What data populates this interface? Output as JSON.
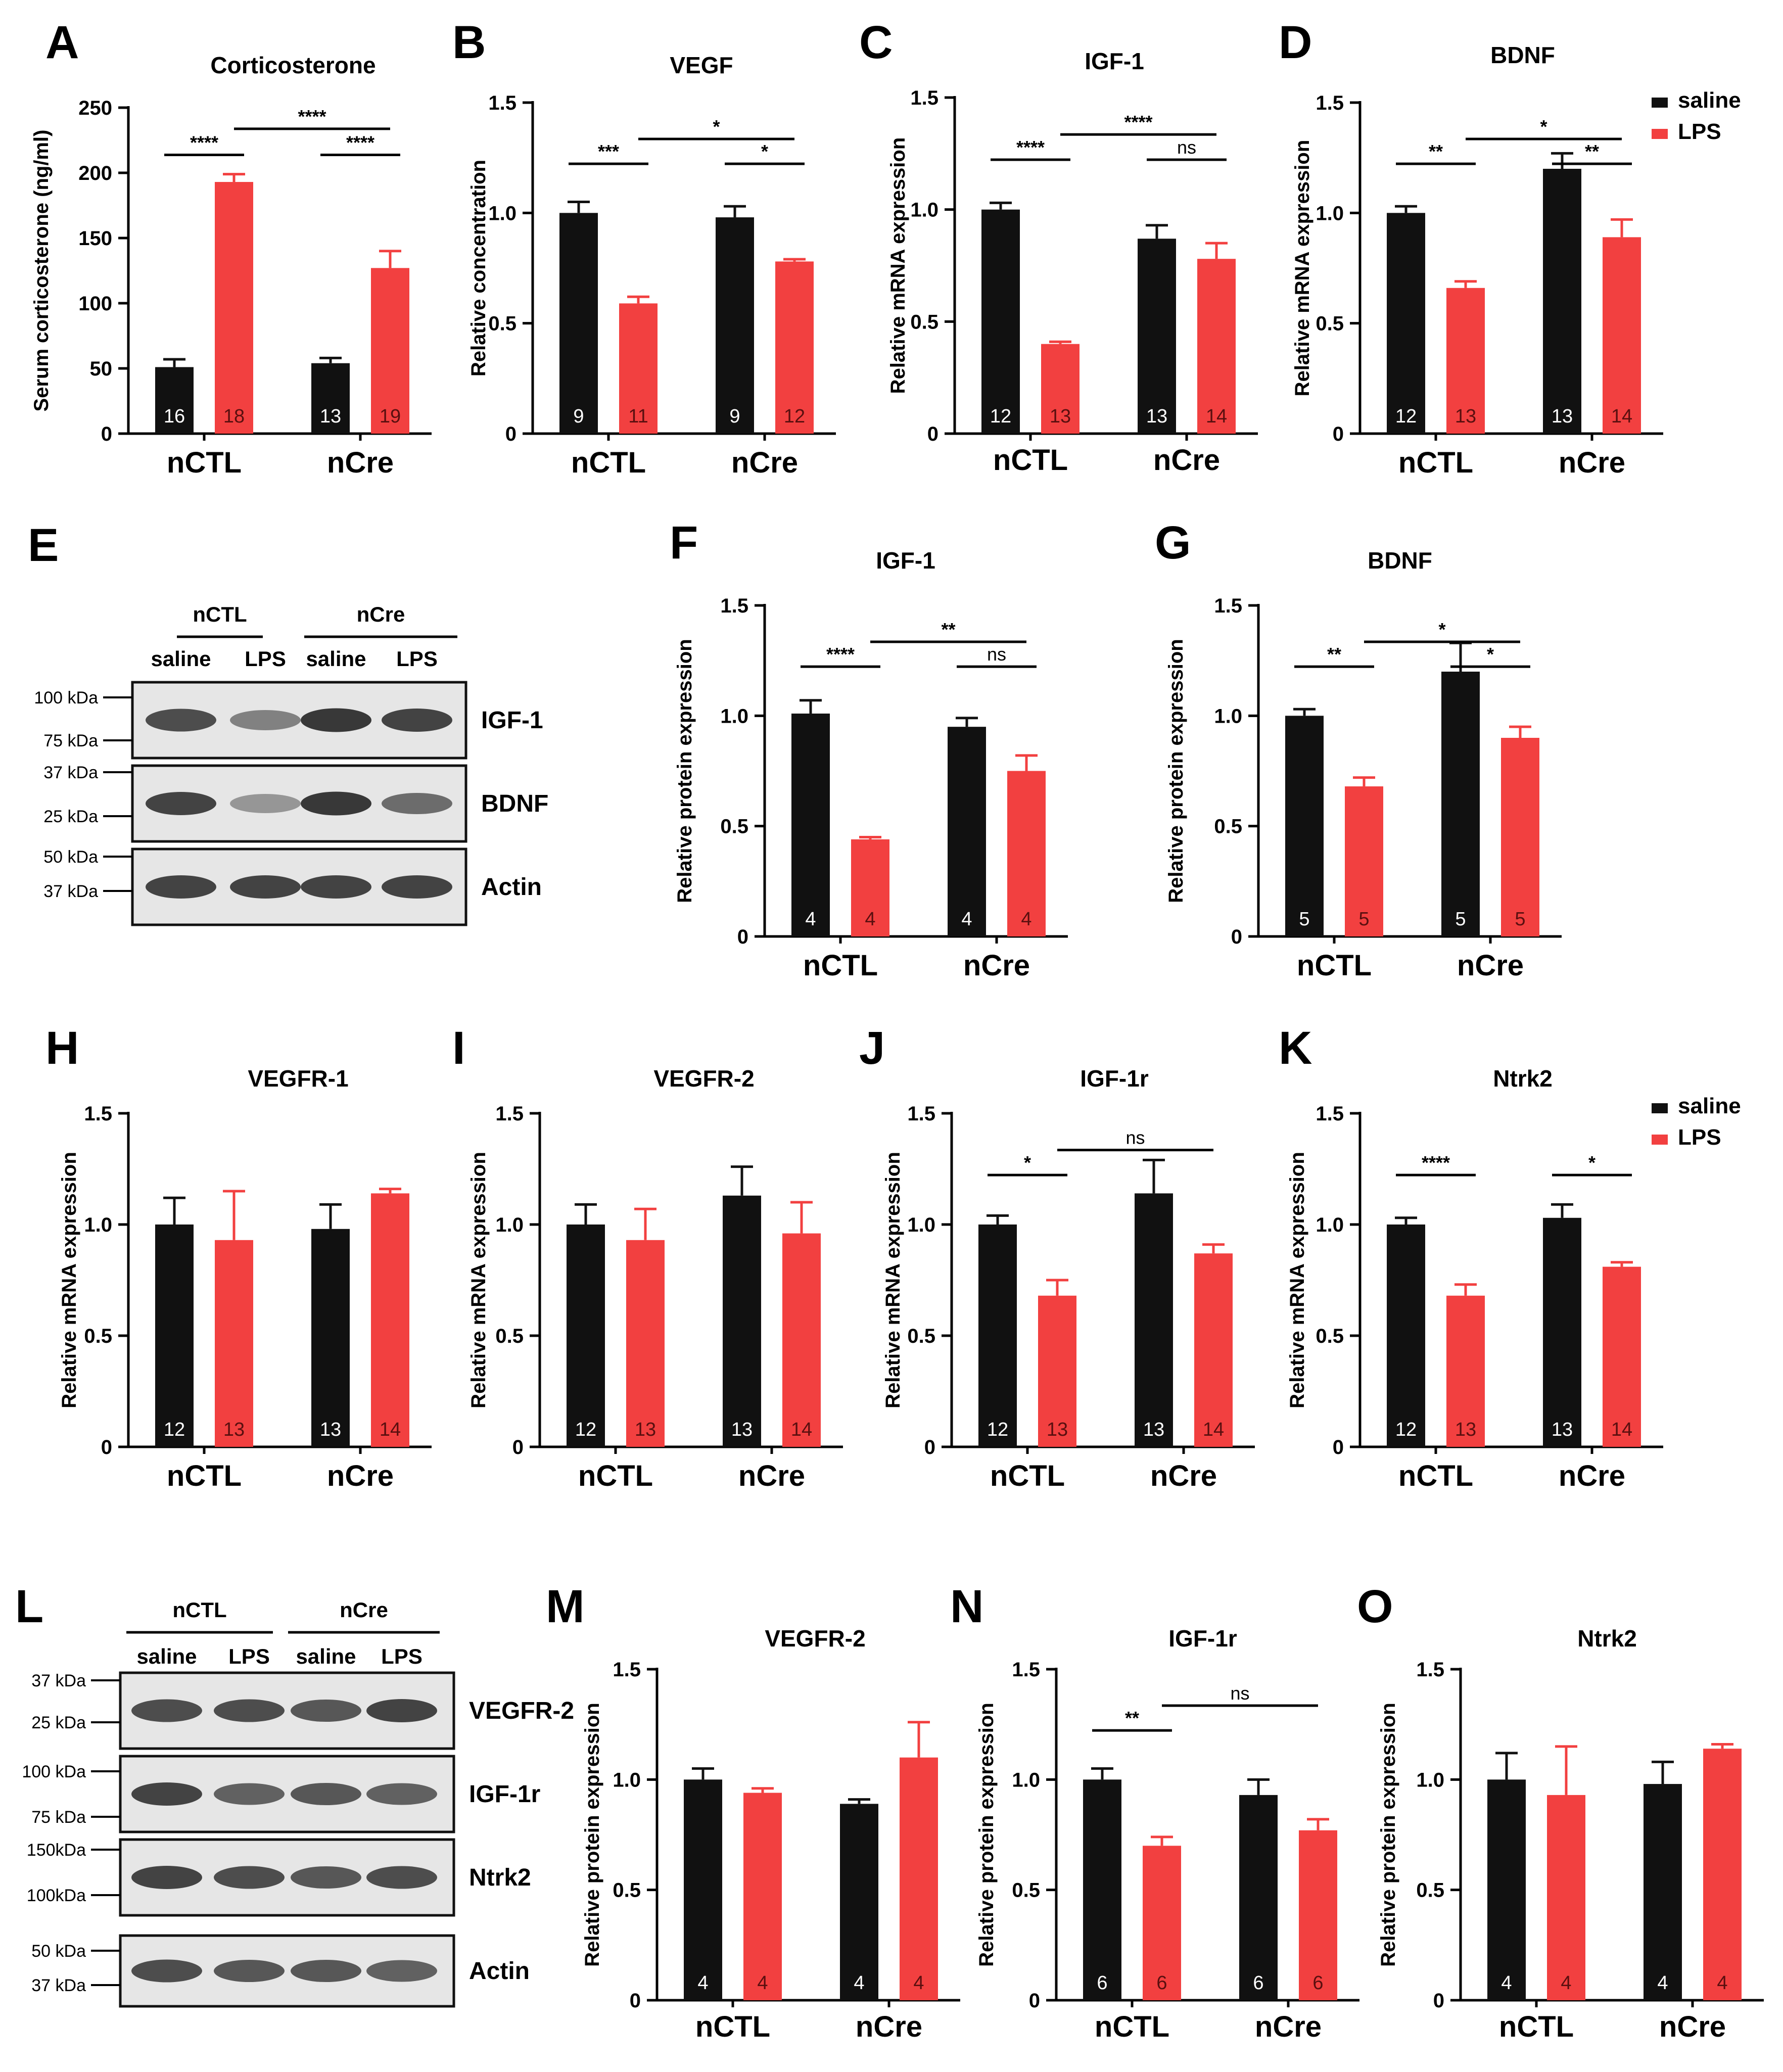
{
  "figure": {
    "group_labels": [
      "nCTL",
      "nCre"
    ],
    "legend": {
      "saline": "saline",
      "LPS": "LPS"
    },
    "colors": {
      "saline": "#111111",
      "LPS": "#f24040",
      "axis": "#000000",
      "text": "#000000"
    }
  },
  "chart_data": [
    {
      "panel": "A",
      "type": "bar",
      "title": "Corticosterone",
      "ylabel": "Serum corticosterone (ng/ml)",
      "ylim": [
        0,
        250
      ],
      "yticks": [
        0,
        50,
        100,
        150,
        200,
        250
      ],
      "ytick_labels": [
        "0",
        "50",
        "100",
        "150",
        "200",
        "250"
      ],
      "categories": [
        "nCTL",
        "nCre"
      ],
      "series": [
        {
          "name": "saline",
          "values": [
            51,
            54
          ],
          "errors": [
            6,
            4
          ],
          "n": [
            16,
            13
          ]
        },
        {
          "name": "LPS",
          "values": [
            193,
            127
          ],
          "errors": [
            6,
            13
          ],
          "n": [
            18,
            19
          ]
        }
      ],
      "significance": [
        {
          "from": [
            0,
            0
          ],
          "to": [
            0,
            1
          ],
          "label": "****"
        },
        {
          "from": [
            0,
            1
          ],
          "to": [
            1,
            1
          ],
          "label": "****"
        },
        {
          "from": [
            1,
            0
          ],
          "to": [
            1,
            1
          ],
          "label": "****"
        }
      ],
      "legend": false
    },
    {
      "panel": "B",
      "type": "bar",
      "title": "VEGF",
      "ylabel": "Relative concentration",
      "ylim": [
        0,
        1.5
      ],
      "yticks": [
        0,
        0.5,
        1.0,
        1.5
      ],
      "ytick_labels": [
        "0",
        "0.5",
        "1.0",
        "1.5"
      ],
      "categories": [
        "nCTL",
        "nCre"
      ],
      "series": [
        {
          "name": "saline",
          "values": [
            1.0,
            0.98
          ],
          "errors": [
            0.05,
            0.05
          ],
          "n": [
            9,
            9
          ]
        },
        {
          "name": "LPS",
          "values": [
            0.59,
            0.78
          ],
          "errors": [
            0.03,
            0.01
          ],
          "n": [
            11,
            12
          ]
        }
      ],
      "significance": [
        {
          "from": [
            0,
            0
          ],
          "to": [
            0,
            1
          ],
          "label": "***"
        },
        {
          "from": [
            0,
            1
          ],
          "to": [
            1,
            1
          ],
          "label": "*"
        },
        {
          "from": [
            1,
            0
          ],
          "to": [
            1,
            1
          ],
          "label": "*"
        }
      ],
      "legend": false
    },
    {
      "panel": "C",
      "type": "bar",
      "title": "IGF-1",
      "ylabel": "Relative mRNA expression",
      "ylim": [
        0,
        1.5
      ],
      "yticks": [
        0,
        0.5,
        1.0,
        1.5
      ],
      "ytick_labels": [
        "0",
        "0.5",
        "1.0",
        "1.5"
      ],
      "categories": [
        "nCTL",
        "nCre"
      ],
      "series": [
        {
          "name": "saline",
          "values": [
            1.0,
            0.87
          ],
          "errors": [
            0.03,
            0.06
          ],
          "n": [
            12,
            13
          ]
        },
        {
          "name": "LPS",
          "values": [
            0.4,
            0.78
          ],
          "errors": [
            0.01,
            0.07
          ],
          "n": [
            13,
            14
          ]
        }
      ],
      "significance": [
        {
          "from": [
            0,
            0
          ],
          "to": [
            0,
            1
          ],
          "label": "****"
        },
        {
          "from": [
            0,
            1
          ],
          "to": [
            1,
            1
          ],
          "label": "****"
        },
        {
          "from": [
            1,
            0
          ],
          "to": [
            1,
            1
          ],
          "label": "ns"
        }
      ],
      "legend": false
    },
    {
      "panel": "D",
      "type": "bar",
      "title": "BDNF",
      "ylabel": "Relative mRNA expression",
      "ylim": [
        0,
        1.5
      ],
      "yticks": [
        0,
        0.5,
        1.0,
        1.5
      ],
      "ytick_labels": [
        "0",
        "0.5",
        "1.0",
        "1.5"
      ],
      "categories": [
        "nCTL",
        "nCre"
      ],
      "series": [
        {
          "name": "saline",
          "values": [
            1.0,
            1.2
          ],
          "errors": [
            0.03,
            0.07
          ],
          "n": [
            12,
            13
          ]
        },
        {
          "name": "LPS",
          "values": [
            0.66,
            0.89
          ],
          "errors": [
            0.03,
            0.08
          ],
          "n": [
            13,
            14
          ]
        }
      ],
      "significance": [
        {
          "from": [
            0,
            0
          ],
          "to": [
            0,
            1
          ],
          "label": "**"
        },
        {
          "from": [
            0,
            1
          ],
          "to": [
            1,
            1
          ],
          "label": "*"
        },
        {
          "from": [
            1,
            0
          ],
          "to": [
            1,
            1
          ],
          "label": "**"
        }
      ],
      "legend": true
    },
    {
      "panel": "F",
      "type": "bar",
      "title": "IGF-1",
      "ylabel": "Relative protein expression",
      "ylim": [
        0,
        1.5
      ],
      "yticks": [
        0,
        0.5,
        1.0,
        1.5
      ],
      "ytick_labels": [
        "0",
        "0.5",
        "1.0",
        "1.5"
      ],
      "categories": [
        "nCTL",
        "nCre"
      ],
      "series": [
        {
          "name": "saline",
          "values": [
            1.01,
            0.95
          ],
          "errors": [
            0.06,
            0.04
          ],
          "n": [
            4,
            4
          ]
        },
        {
          "name": "LPS",
          "values": [
            0.44,
            0.75
          ],
          "errors": [
            0.01,
            0.07
          ],
          "n": [
            4,
            4
          ]
        }
      ],
      "significance": [
        {
          "from": [
            0,
            0
          ],
          "to": [
            0,
            1
          ],
          "label": "****"
        },
        {
          "from": [
            0,
            1
          ],
          "to": [
            1,
            1
          ],
          "label": "**"
        },
        {
          "from": [
            1,
            0
          ],
          "to": [
            1,
            1
          ],
          "label": "ns"
        }
      ],
      "legend": false
    },
    {
      "panel": "G",
      "type": "bar",
      "title": "BDNF",
      "ylabel": "Relative protein expression",
      "ylim": [
        0,
        1.5
      ],
      "yticks": [
        0,
        0.5,
        1.0,
        1.5
      ],
      "ytick_labels": [
        "0",
        "0.5",
        "1.0",
        "1.5"
      ],
      "categories": [
        "nCTL",
        "nCre"
      ],
      "series": [
        {
          "name": "saline",
          "values": [
            1.0,
            1.2
          ],
          "errors": [
            0.03,
            0.13
          ],
          "n": [
            5,
            5
          ]
        },
        {
          "name": "LPS",
          "values": [
            0.68,
            0.9
          ],
          "errors": [
            0.04,
            0.05
          ],
          "n": [
            5,
            5
          ]
        }
      ],
      "significance": [
        {
          "from": [
            0,
            0
          ],
          "to": [
            0,
            1
          ],
          "label": "**"
        },
        {
          "from": [
            0,
            1
          ],
          "to": [
            1,
            1
          ],
          "label": "*"
        },
        {
          "from": [
            1,
            0
          ],
          "to": [
            1,
            1
          ],
          "label": "*"
        }
      ],
      "legend": false
    },
    {
      "panel": "H",
      "type": "bar",
      "title": "VEGFR-1",
      "ylabel": "Relative mRNA expression",
      "ylim": [
        0,
        1.5
      ],
      "yticks": [
        0,
        0.5,
        1.0,
        1.5
      ],
      "ytick_labels": [
        "0",
        "0.5",
        "1.0",
        "1.5"
      ],
      "categories": [
        "nCTL",
        "nCre"
      ],
      "series": [
        {
          "name": "saline",
          "values": [
            1.0,
            0.98
          ],
          "errors": [
            0.12,
            0.11
          ],
          "n": [
            12,
            13
          ]
        },
        {
          "name": "LPS",
          "values": [
            0.93,
            1.14
          ],
          "errors": [
            0.22,
            0.02
          ],
          "n": [
            13,
            14
          ]
        }
      ],
      "significance": [],
      "legend": false
    },
    {
      "panel": "I",
      "type": "bar",
      "title": "VEGFR-2",
      "ylabel": "Relative mRNA expression",
      "ylim": [
        0,
        1.5
      ],
      "yticks": [
        0,
        0.5,
        1.0,
        1.5
      ],
      "ytick_labels": [
        "0",
        "0.5",
        "1.0",
        "1.5"
      ],
      "categories": [
        "nCTL",
        "nCre"
      ],
      "series": [
        {
          "name": "saline",
          "values": [
            1.0,
            1.13
          ],
          "errors": [
            0.09,
            0.13
          ],
          "n": [
            12,
            13
          ]
        },
        {
          "name": "LPS",
          "values": [
            0.93,
            0.96
          ],
          "errors": [
            0.14,
            0.14
          ],
          "n": [
            13,
            14
          ]
        }
      ],
      "significance": [],
      "legend": false
    },
    {
      "panel": "J",
      "type": "bar",
      "title": "IGF-1r",
      "ylabel": "Relative mRNA expression",
      "ylim": [
        0,
        1.5
      ],
      "yticks": [
        0,
        0.5,
        1.0,
        1.5
      ],
      "ytick_labels": [
        "0",
        "0.5",
        "1.0",
        "1.5"
      ],
      "categories": [
        "nCTL",
        "nCre"
      ],
      "series": [
        {
          "name": "saline",
          "values": [
            1.0,
            1.14
          ],
          "errors": [
            0.04,
            0.15
          ],
          "n": [
            12,
            13
          ]
        },
        {
          "name": "LPS",
          "values": [
            0.68,
            0.87
          ],
          "errors": [
            0.07,
            0.04
          ],
          "n": [
            13,
            14
          ]
        }
      ],
      "significance": [
        {
          "from": [
            0,
            0
          ],
          "to": [
            0,
            1
          ],
          "label": "*"
        },
        {
          "from": [
            0,
            1
          ],
          "to": [
            1,
            1
          ],
          "label": "ns"
        }
      ],
      "legend": false
    },
    {
      "panel": "K",
      "type": "bar",
      "title": "Ntrk2",
      "ylabel": "Relative mRNA expression",
      "ylim": [
        0,
        1.5
      ],
      "yticks": [
        0,
        0.5,
        1.0,
        1.5
      ],
      "ytick_labels": [
        "0",
        "0.5",
        "1.0",
        "1.5"
      ],
      "categories": [
        "nCTL",
        "nCre"
      ],
      "series": [
        {
          "name": "saline",
          "values": [
            1.0,
            1.03
          ],
          "errors": [
            0.03,
            0.06
          ],
          "n": [
            12,
            13
          ]
        },
        {
          "name": "LPS",
          "values": [
            0.68,
            0.81
          ],
          "errors": [
            0.05,
            0.02
          ],
          "n": [
            13,
            14
          ]
        }
      ],
      "significance": [
        {
          "from": [
            0,
            0
          ],
          "to": [
            0,
            1
          ],
          "label": "****"
        },
        {
          "from": [
            1,
            0
          ],
          "to": [
            1,
            1
          ],
          "label": "*"
        }
      ],
      "legend": true
    },
    {
      "panel": "M",
      "type": "bar",
      "title": "VEGFR-2",
      "ylabel": "Relative protein expression",
      "ylim": [
        0,
        1.5
      ],
      "yticks": [
        0,
        0.5,
        1.0,
        1.5
      ],
      "ytick_labels": [
        "0",
        "0.5",
        "1.0",
        "1.5"
      ],
      "categories": [
        "nCTL",
        "nCre"
      ],
      "series": [
        {
          "name": "saline",
          "values": [
            1.0,
            0.89
          ],
          "errors": [
            0.05,
            0.02
          ],
          "n": [
            4,
            4
          ]
        },
        {
          "name": "LPS",
          "values": [
            0.94,
            1.1
          ],
          "errors": [
            0.02,
            0.16
          ],
          "n": [
            4,
            4
          ]
        }
      ],
      "significance": [],
      "legend": false
    },
    {
      "panel": "N",
      "type": "bar",
      "title": "IGF-1r",
      "ylabel": "Relative protein expression",
      "ylim": [
        0,
        1.5
      ],
      "yticks": [
        0,
        0.5,
        1.0,
        1.5
      ],
      "ytick_labels": [
        "0",
        "0.5",
        "1.0",
        "1.5"
      ],
      "categories": [
        "nCTL",
        "nCre"
      ],
      "series": [
        {
          "name": "saline",
          "values": [
            1.0,
            0.93
          ],
          "errors": [
            0.05,
            0.07
          ],
          "n": [
            6,
            6
          ]
        },
        {
          "name": "LPS",
          "values": [
            0.7,
            0.77
          ],
          "errors": [
            0.04,
            0.05
          ],
          "n": [
            6,
            6
          ]
        }
      ],
      "significance": [
        {
          "from": [
            0,
            0
          ],
          "to": [
            0,
            1
          ],
          "label": "**"
        },
        {
          "from": [
            0,
            1
          ],
          "to": [
            1,
            1
          ],
          "label": "ns"
        }
      ],
      "legend": false
    },
    {
      "panel": "O",
      "type": "bar",
      "title": "Ntrk2",
      "ylabel": "Relative protein expression",
      "ylim": [
        0,
        1.5
      ],
      "yticks": [
        0,
        0.5,
        1.0,
        1.5
      ],
      "ytick_labels": [
        "0",
        "0.5",
        "1.0",
        "1.5"
      ],
      "categories": [
        "nCTL",
        "nCre"
      ],
      "series": [
        {
          "name": "saline",
          "values": [
            1.0,
            0.98
          ],
          "errors": [
            0.12,
            0.1
          ],
          "n": [
            4,
            4
          ]
        },
        {
          "name": "LPS",
          "values": [
            0.93,
            1.14
          ],
          "errors": [
            0.22,
            0.02
          ],
          "n": [
            4,
            4
          ]
        }
      ],
      "significance": [],
      "legend": false
    }
  ],
  "blots": [
    {
      "panel": "E",
      "groups": [
        "nCTL",
        "nCre"
      ],
      "lanes": [
        "saline",
        "LPS",
        "saline",
        "LPS"
      ],
      "markers": [
        "100 kDa",
        "75 kDa",
        "37 kDa",
        "25 kDa",
        "50 kDa",
        "37 kDa"
      ],
      "bands": [
        {
          "label": "IGF-1",
          "intensities": [
            0.85,
            0.6,
            0.95,
            0.9
          ]
        },
        {
          "label": "BDNF",
          "intensities": [
            0.9,
            0.5,
            0.95,
            0.7
          ]
        },
        {
          "label": "Actin",
          "intensities": [
            0.9,
            0.9,
            0.9,
            0.9
          ]
        }
      ]
    },
    {
      "panel": "L",
      "groups": [
        "nCTL",
        "nCre"
      ],
      "lanes": [
        "saline",
        "LPS",
        "saline",
        "LPS"
      ],
      "markers": [
        "37 kDa",
        "25 kDa",
        "100 kDa",
        "75 kDa",
        "150kDa",
        "100kDa",
        "50 kDa",
        "37 kDa"
      ],
      "bands": [
        {
          "label": "VEGFR-2",
          "intensities": [
            0.85,
            0.85,
            0.8,
            0.9
          ]
        },
        {
          "label": "IGF-1r",
          "intensities": [
            0.9,
            0.75,
            0.8,
            0.75
          ]
        },
        {
          "label": "Ntrk2",
          "intensities": [
            0.9,
            0.85,
            0.8,
            0.85
          ]
        },
        {
          "label": "Actin",
          "intensities": [
            0.85,
            0.8,
            0.8,
            0.75
          ]
        }
      ]
    }
  ]
}
